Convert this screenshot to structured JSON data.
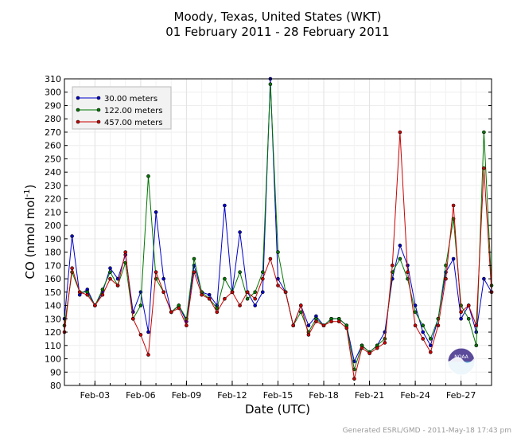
{
  "chart_data": {
    "type": "line",
    "title": "Moody, Texas, United States (WKT)",
    "subtitle": "01 February 2011 - 28 February 2011",
    "xlabel": "Date (UTC)",
    "ylabel": "CO (nmol mol",
    "ylabel_sup": "-1",
    "ylabel_close": ")",
    "xlim": [
      "2011-02-01",
      "2011-03-01"
    ],
    "ylim": [
      80,
      310
    ],
    "ytick_step": 10,
    "xticks": [
      {
        "label": "Feb-03",
        "date": "2011-02-03"
      },
      {
        "label": "Feb-06",
        "date": "2011-02-06"
      },
      {
        "label": "Feb-09",
        "date": "2011-02-09"
      },
      {
        "label": "Feb-12",
        "date": "2011-02-12"
      },
      {
        "label": "Feb-15",
        "date": "2011-02-15"
      },
      {
        "label": "Feb-18",
        "date": "2011-02-18"
      },
      {
        "label": "Feb-21",
        "date": "2011-02-21"
      },
      {
        "label": "Feb-24",
        "date": "2011-02-24"
      },
      {
        "label": "Feb-27",
        "date": "2011-02-27"
      }
    ],
    "grid": true,
    "legend_position": "top-left",
    "series": [
      {
        "name": "30.00 meters",
        "color": "#0000cc",
        "x": [
          "2011-02-01",
          "2011-02-01T12:00",
          "2011-02-02",
          "2011-02-02T12:00",
          "2011-02-03",
          "2011-02-03T12:00",
          "2011-02-04",
          "2011-02-04T12:00",
          "2011-02-05",
          "2011-02-05T12:00",
          "2011-02-06",
          "2011-02-06T12:00",
          "2011-02-07",
          "2011-02-07T12:00",
          "2011-02-08",
          "2011-02-08T12:00",
          "2011-02-09",
          "2011-02-09T12:00",
          "2011-02-10",
          "2011-02-10T12:00",
          "2011-02-11",
          "2011-02-11T12:00",
          "2011-02-12",
          "2011-02-12T12:00",
          "2011-02-13",
          "2011-02-13T12:00",
          "2011-02-14",
          "2011-02-14T12:00",
          "2011-02-15",
          "2011-02-15T12:00",
          "2011-02-16",
          "2011-02-16T12:00",
          "2011-02-17",
          "2011-02-17T12:00",
          "2011-02-18",
          "2011-02-18T12:00",
          "2011-02-19",
          "2011-02-19T12:00",
          "2011-02-20",
          "2011-02-20T12:00",
          "2011-02-21",
          "2011-02-21T12:00",
          "2011-02-22",
          "2011-02-22T12:00",
          "2011-02-23",
          "2011-02-23T12:00",
          "2011-02-24",
          "2011-02-24T12:00",
          "2011-02-25",
          "2011-02-25T12:00",
          "2011-02-26",
          "2011-02-26T12:00",
          "2011-02-27",
          "2011-02-27T12:00",
          "2011-02-28",
          "2011-02-28T12:00",
          "2011-03-01"
        ],
        "y": [
          130,
          192,
          148,
          152,
          140,
          150,
          168,
          160,
          178,
          135,
          150,
          120,
          210,
          160,
          135,
          140,
          128,
          170,
          150,
          148,
          140,
          215,
          150,
          195,
          150,
          140,
          150,
          310,
          160,
          150,
          125,
          140,
          125,
          132,
          125,
          130,
          130,
          125,
          98,
          110,
          105,
          110,
          120,
          160,
          185,
          170,
          140,
          120,
          110,
          130,
          165,
          175,
          130,
          140,
          120,
          160,
          150
        ]
      },
      {
        "name": "122.00 meters",
        "color": "#007700",
        "x": [
          "2011-02-01",
          "2011-02-01T12:00",
          "2011-02-02",
          "2011-02-02T12:00",
          "2011-02-03",
          "2011-02-03T12:00",
          "2011-02-04",
          "2011-02-04T12:00",
          "2011-02-05",
          "2011-02-05T12:00",
          "2011-02-06",
          "2011-02-06T12:00",
          "2011-02-07",
          "2011-02-07T12:00",
          "2011-02-08",
          "2011-02-08T12:00",
          "2011-02-09",
          "2011-02-09T12:00",
          "2011-02-10",
          "2011-02-10T12:00",
          "2011-02-11",
          "2011-02-11T12:00",
          "2011-02-12",
          "2011-02-12T12:00",
          "2011-02-13",
          "2011-02-13T12:00",
          "2011-02-14",
          "2011-02-14T12:00",
          "2011-02-15",
          "2011-02-15T12:00",
          "2011-02-16",
          "2011-02-16T12:00",
          "2011-02-17",
          "2011-02-17T12:00",
          "2011-02-18",
          "2011-02-18T12:00",
          "2011-02-19",
          "2011-02-19T12:00",
          "2011-02-20",
          "2011-02-20T12:00",
          "2011-02-21",
          "2011-02-21T12:00",
          "2011-02-22",
          "2011-02-22T12:00",
          "2011-02-23",
          "2011-02-23T12:00",
          "2011-02-24",
          "2011-02-24T12:00",
          "2011-02-25",
          "2011-02-25T12:00",
          "2011-02-26",
          "2011-02-26T12:00",
          "2011-02-27",
          "2011-02-27T12:00",
          "2011-02-28",
          "2011-02-28T12:00",
          "2011-03-01"
        ],
        "y": [
          125,
          165,
          150,
          150,
          140,
          152,
          165,
          155,
          172,
          130,
          140,
          237,
          160,
          150,
          135,
          140,
          130,
          175,
          150,
          145,
          138,
          160,
          150,
          165,
          145,
          150,
          165,
          306,
          180,
          150,
          125,
          135,
          120,
          130,
          125,
          130,
          130,
          125,
          92,
          110,
          105,
          110,
          115,
          165,
          175,
          160,
          135,
          125,
          115,
          130,
          170,
          205,
          140,
          130,
          110,
          270,
          155
        ]
      },
      {
        "name": "457.00 meters",
        "color": "#cc0000",
        "x": [
          "2011-02-01",
          "2011-02-01T12:00",
          "2011-02-02",
          "2011-02-02T12:00",
          "2011-02-03",
          "2011-02-03T12:00",
          "2011-02-04",
          "2011-02-04T12:00",
          "2011-02-05",
          "2011-02-05T12:00",
          "2011-02-06",
          "2011-02-06T12:00",
          "2011-02-07",
          "2011-02-07T12:00",
          "2011-02-08",
          "2011-02-08T12:00",
          "2011-02-09",
          "2011-02-09T12:00",
          "2011-02-10",
          "2011-02-10T12:00",
          "2011-02-11",
          "2011-02-11T12:00",
          "2011-02-12",
          "2011-02-12T12:00",
          "2011-02-13",
          "2011-02-13T12:00",
          "2011-02-14",
          "2011-02-14T12:00",
          "2011-02-15",
          "2011-02-15T12:00",
          "2011-02-16",
          "2011-02-16T12:00",
          "2011-02-17",
          "2011-02-17T12:00",
          "2011-02-18",
          "2011-02-18T12:00",
          "2011-02-19",
          "2011-02-19T12:00",
          "2011-02-20",
          "2011-02-20T12:00",
          "2011-02-21",
          "2011-02-21T12:00",
          "2011-02-22",
          "2011-02-22T12:00",
          "2011-02-23",
          "2011-02-23T12:00",
          "2011-02-24",
          "2011-02-24T12:00",
          "2011-02-25",
          "2011-02-25T12:00",
          "2011-02-26",
          "2011-02-26T12:00",
          "2011-02-27",
          "2011-02-27T12:00",
          "2011-02-28",
          "2011-02-28T12:00",
          "2011-03-01"
        ],
        "y": [
          120,
          168,
          150,
          148,
          140,
          148,
          160,
          155,
          180,
          130,
          118,
          103,
          165,
          150,
          135,
          138,
          125,
          165,
          148,
          145,
          135,
          145,
          150,
          140,
          150,
          145,
          160,
          175,
          155,
          150,
          125,
          140,
          118,
          128,
          125,
          128,
          128,
          123,
          85,
          108,
          104,
          108,
          112,
          170,
          270,
          165,
          125,
          115,
          105,
          125,
          160,
          215,
          135,
          140,
          125,
          243,
          150
        ]
      }
    ]
  },
  "footer": "Generated ESRL/GMD - 2011-May-18 17:43 pm",
  "logo": {
    "text": "NOAA",
    "icon": "noaa-logo-icon",
    "colors": {
      "top": "#5b4b9a",
      "bottom": "#4ba3d6"
    }
  }
}
